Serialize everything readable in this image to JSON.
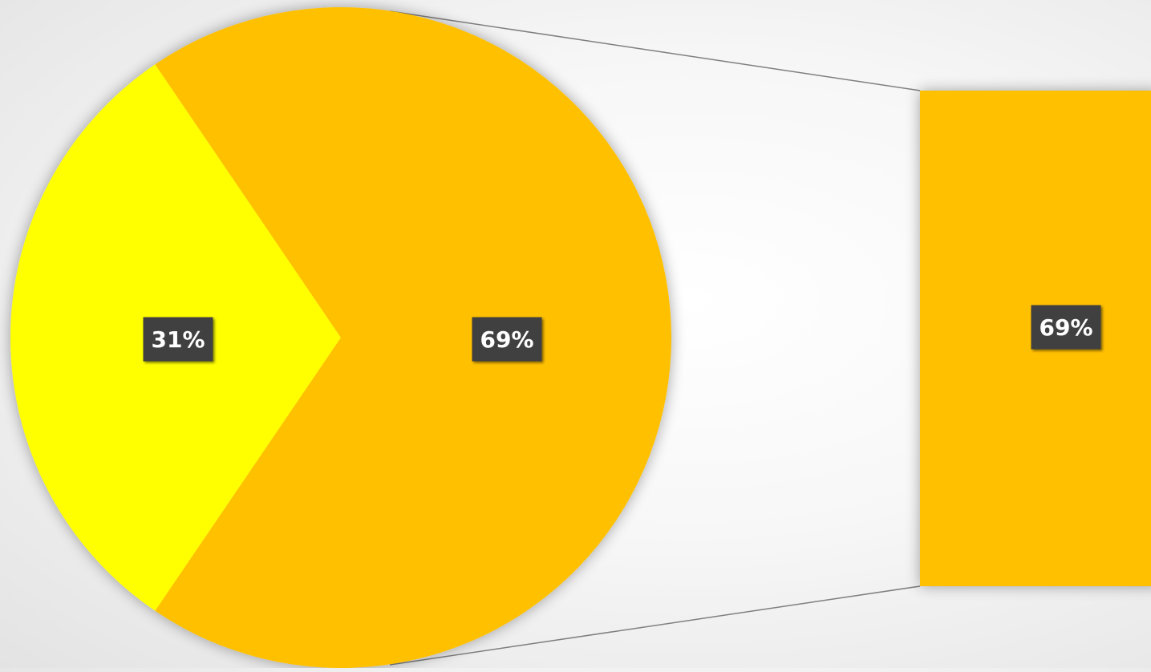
{
  "chart_data": {
    "type": "pie",
    "subtype": "bar-of-pie",
    "slices": [
      {
        "label": "31%",
        "value": 31,
        "color": "#FFFF00"
      },
      {
        "label": "69%",
        "value": 69,
        "color": "#FFC000"
      }
    ],
    "secondary_bar": {
      "label": "69%",
      "value": 69,
      "color": "#FFC000"
    },
    "label_box_color": "#404040",
    "label_text_color": "#FFFFFF",
    "connector_color": "#7F7F7F",
    "legend": "none"
  }
}
